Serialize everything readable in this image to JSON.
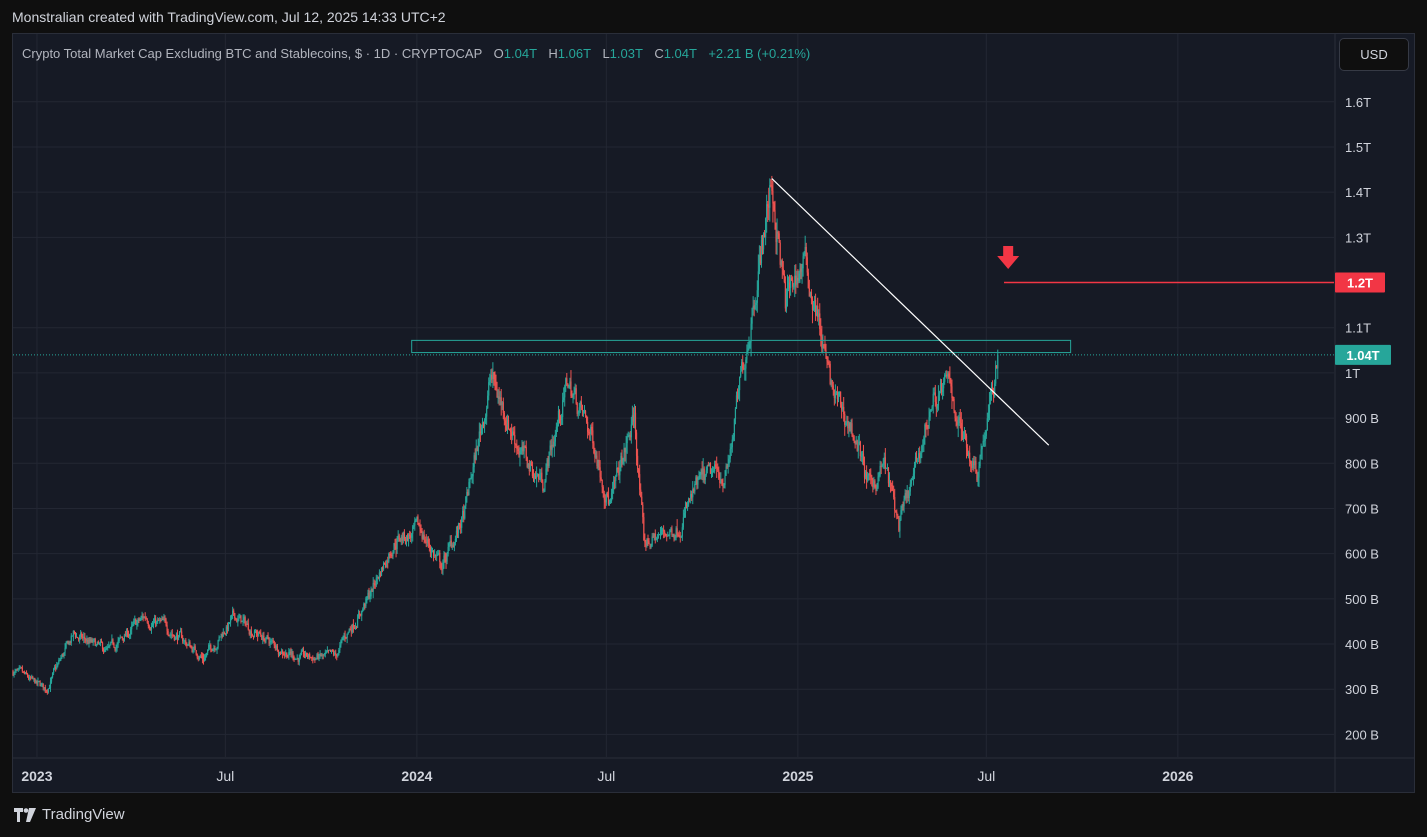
{
  "caption": "Monstralian created with TradingView.com, Jul 12, 2025 14:33 UTC+2",
  "legend": {
    "title": "Crypto Total Market Cap Excluding BTC and Stablecoins, $ · 1D · CRYPTOCAP",
    "open_label": "O",
    "open_value": "1.04T",
    "high_label": "H",
    "high_value": "1.06T",
    "low_label": "L",
    "low_value": "1.03T",
    "close_label": "C",
    "close_value": "1.04T",
    "change": "+2.21 B (+0.21%)"
  },
  "currency_button": "USD",
  "brand": "TradingView",
  "colors": {
    "up": "#26a69a",
    "down": "#ef5350",
    "resistance_line": "#f23645",
    "zone": "#26a69a",
    "trendline": "#ffffff"
  },
  "annotations": {
    "resistance_label": "1.2T",
    "last_price_label": "1.04T"
  },
  "chart_data": {
    "type": "candlestick",
    "title": "Crypto Total Market Cap Excluding BTC and Stablecoins, $ · 1D · CRYPTOCAP",
    "y_unit": "USD",
    "ylim": [
      0.15,
      1.75
    ],
    "y_ticks": [
      {
        "value": 0.2,
        "label": "200 B"
      },
      {
        "value": 0.3,
        "label": "300 B"
      },
      {
        "value": 0.4,
        "label": "400 B"
      },
      {
        "value": 0.5,
        "label": "500 B"
      },
      {
        "value": 0.6,
        "label": "600 B"
      },
      {
        "value": 0.7,
        "label": "700 B"
      },
      {
        "value": 0.8,
        "label": "800 B"
      },
      {
        "value": 0.9,
        "label": "900 B"
      },
      {
        "value": 1.0,
        "label": "1T"
      },
      {
        "value": 1.1,
        "label": "1.1T"
      },
      {
        "value": 1.3,
        "label": "1.3T"
      },
      {
        "value": 1.4,
        "label": "1.4T"
      },
      {
        "value": 1.5,
        "label": "1.5T"
      },
      {
        "value": 1.6,
        "label": "1.6T"
      }
    ],
    "x_ticks": [
      {
        "date": "2023-01-01",
        "label": "2023",
        "bold": true
      },
      {
        "date": "2023-07-01",
        "label": "Jul",
        "bold": false
      },
      {
        "date": "2024-01-01",
        "label": "2024",
        "bold": true
      },
      {
        "date": "2024-07-01",
        "label": "Jul",
        "bold": false
      },
      {
        "date": "2025-01-01",
        "label": "2025",
        "bold": true
      },
      {
        "date": "2025-07-01",
        "label": "Jul",
        "bold": false
      },
      {
        "date": "2026-01-01",
        "label": "2026",
        "bold": true
      }
    ],
    "xlim": [
      "2022-12-09",
      "2026-05-31"
    ],
    "grid": true,
    "price_path": [
      [
        "2022-12-09",
        0.34
      ],
      [
        "2022-12-31",
        0.31
      ],
      [
        "2023-01-10",
        0.3
      ],
      [
        "2023-02-05",
        0.42
      ],
      [
        "2023-03-10",
        0.38
      ],
      [
        "2023-04-15",
        0.46
      ],
      [
        "2023-05-10",
        0.43
      ],
      [
        "2023-06-10",
        0.37
      ],
      [
        "2023-07-10",
        0.46
      ],
      [
        "2023-08-15",
        0.4
      ],
      [
        "2023-09-10",
        0.37
      ],
      [
        "2023-10-15",
        0.37
      ],
      [
        "2023-10-25",
        0.42
      ],
      [
        "2023-11-15",
        0.5
      ],
      [
        "2023-12-10",
        0.63
      ],
      [
        "2024-01-05",
        0.65
      ],
      [
        "2024-01-25",
        0.57
      ],
      [
        "2024-02-15",
        0.68
      ],
      [
        "2024-03-12",
        0.99
      ],
      [
        "2024-04-15",
        0.8
      ],
      [
        "2024-05-01",
        0.76
      ],
      [
        "2024-05-25",
        0.98
      ],
      [
        "2024-06-20",
        0.84
      ],
      [
        "2024-07-05",
        0.71
      ],
      [
        "2024-07-28",
        0.9
      ],
      [
        "2024-08-06",
        0.62
      ],
      [
        "2024-09-07",
        0.66
      ],
      [
        "2024-10-01",
        0.76
      ],
      [
        "2024-10-25",
        0.78
      ],
      [
        "2024-11-06",
        0.96
      ],
      [
        "2024-11-20",
        1.18
      ],
      [
        "2024-12-07",
        1.42
      ],
      [
        "2024-12-20",
        1.15
      ],
      [
        "2025-01-06",
        1.25
      ],
      [
        "2025-01-19",
        1.14
      ],
      [
        "2025-02-02",
        0.96
      ],
      [
        "2025-02-25",
        0.86
      ],
      [
        "2025-03-11",
        0.74
      ],
      [
        "2025-03-25",
        0.8
      ],
      [
        "2025-04-08",
        0.66
      ],
      [
        "2025-04-23",
        0.77
      ],
      [
        "2025-05-10",
        0.94
      ],
      [
        "2025-05-28",
        0.97
      ],
      [
        "2025-06-06",
        0.88
      ],
      [
        "2025-06-22",
        0.79
      ],
      [
        "2025-07-02",
        0.9
      ],
      [
        "2025-07-08",
        0.96
      ],
      [
        "2025-07-12",
        1.04
      ]
    ],
    "zone": {
      "from": "2023-12-27",
      "to": "2025-09-20",
      "low": 1.045,
      "high": 1.072
    },
    "trendline": {
      "from": [
        "2024-12-07",
        1.43
      ],
      "to": [
        "2025-08-30",
        0.84
      ]
    },
    "resistance": {
      "from": "2025-07-18",
      "to": "2026-05-31",
      "value": 1.2
    },
    "arrow": {
      "date": "2025-07-22",
      "value": 1.25
    },
    "last_price": 1.04
  }
}
